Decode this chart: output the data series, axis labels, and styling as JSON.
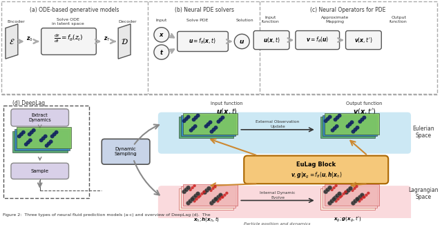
{
  "fig_width": 6.4,
  "fig_height": 3.26,
  "dpi": 100,
  "bg_color": "#ffffff",
  "panel_a_title": "(a) ODE-based generative models",
  "panel_b_title": "(b) Neural PDE solvers",
  "panel_c_title": "(c) Neural Operators for PDE",
  "panel_d_title": "(d) DeepLag",
  "caption": "Figure 2:  Three types of neural fluid prediction models (a-c) and overview of DeepLag (d).  The",
  "light_gray": "#e8e8e8",
  "dark_border": "#555555",
  "blue_bg": "#cce8f4",
  "pink_bg": "#fadadd",
  "orange_bg": "#f5c87a",
  "light_purple": "#d8d0e8",
  "arrow_color": "#888888"
}
